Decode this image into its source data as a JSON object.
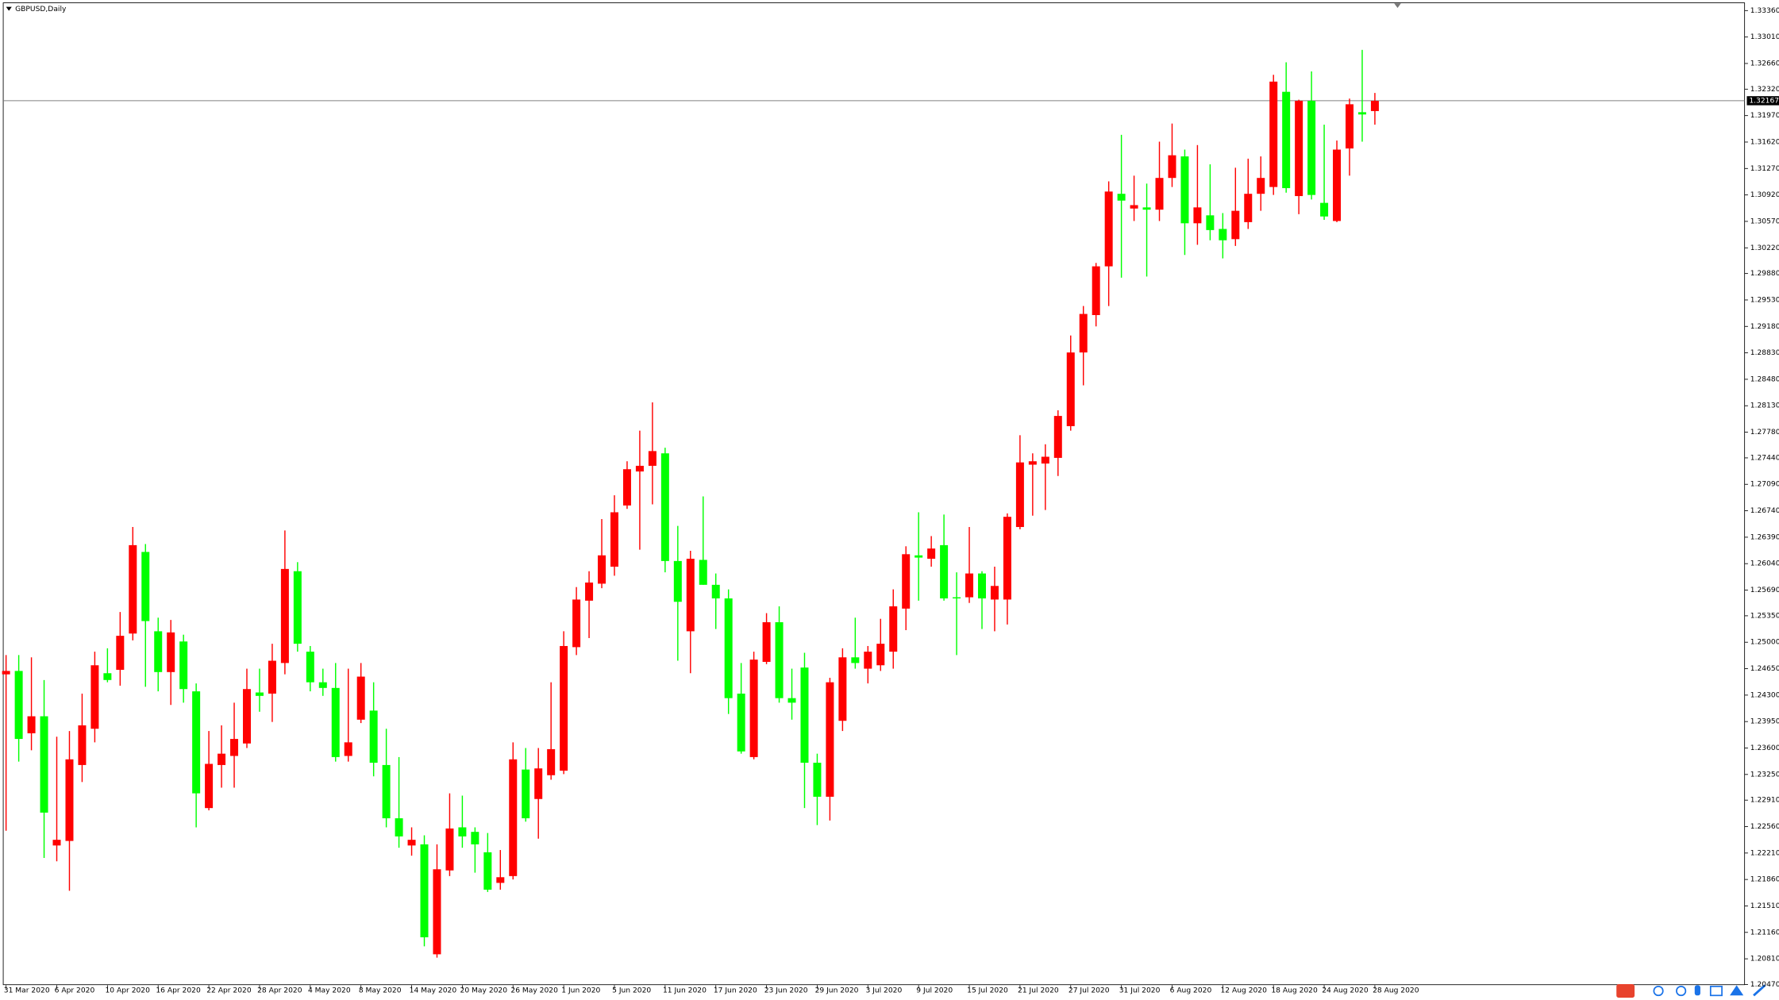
{
  "chart_data": {
    "type": "candlestick",
    "title": "GBPUSD,Daily",
    "up_color": "#ff0000",
    "down_color": "#00ff00",
    "current_price": 1.32167,
    "categories": [
      "31 Mar 2020",
      null,
      null,
      null,
      "6 Apr 2020",
      null,
      null,
      null,
      "10 Apr 2020",
      null,
      null,
      null,
      "16 Apr 2020",
      null,
      null,
      null,
      "22 Apr 2020",
      null,
      null,
      null,
      "28 Apr 2020",
      null,
      null,
      null,
      "4 May 2020",
      null,
      null,
      null,
      "8 May 2020",
      null,
      null,
      null,
      "14 May 2020",
      null,
      null,
      null,
      "20 May 2020",
      null,
      null,
      null,
      "26 May 2020",
      null,
      null,
      null,
      "1 Jun 2020",
      null,
      null,
      null,
      "5 Jun 2020",
      null,
      null,
      null,
      "11 Jun 2020",
      null,
      null,
      null,
      "17 Jun 2020",
      null,
      null,
      null,
      "23 Jun 2020",
      null,
      null,
      null,
      "29 Jun 2020",
      null,
      null,
      null,
      "3 Jul 2020",
      null,
      null,
      null,
      "9 Jul 2020",
      null,
      null,
      null,
      "15 Jul 2020",
      null,
      null,
      null,
      "21 Jul 2020",
      null,
      null,
      null,
      "27 Jul 2020",
      null,
      null,
      null,
      "31 Jul 2020",
      null,
      null,
      null,
      "6 Aug 2020",
      null,
      null,
      null,
      "12 Aug 2020",
      null,
      null,
      null,
      "18 Aug 2020",
      null,
      null,
      null,
      "24 Aug 2020",
      null,
      null,
      null,
      "28 Aug 2020"
    ],
    "open": [
      1.24575,
      1.2462,
      1.23795,
      1.2402,
      1.2231,
      1.2237,
      1.23375,
      1.23855,
      1.2459,
      1.24635,
      1.25115,
      1.26195,
      1.25145,
      1.24605,
      1.2501,
      1.2435,
      1.22805,
      1.23375,
      1.23495,
      1.2366,
      1.24335,
      1.2432,
      1.24725,
      1.2594,
      1.24875,
      1.2447,
      1.24395,
      1.23495,
      1.23975,
      1.24095,
      1.23375,
      1.2267,
      1.2231,
      1.22325,
      1.2087,
      1.2198,
      1.2255,
      1.2249,
      1.2222,
      1.21815,
      1.21905,
      1.23315,
      1.22925,
      1.2324,
      1.233,
      1.24935,
      1.2555,
      1.25775,
      1.26,
      1.2681,
      1.2726,
      1.27335,
      1.275,
      1.26075,
      1.25145,
      1.2609,
      1.2576,
      1.2558,
      1.2432,
      1.2348,
      1.2474,
      1.25265,
      1.2426,
      1.24665,
      1.23405,
      1.22955,
      1.2396,
      1.248,
      1.2465,
      1.24695,
      1.24875,
      1.25445,
      1.2615,
      1.26105,
      1.26285,
      1.25595,
      1.25595,
      1.2591,
      1.25565,
      1.25565,
      1.26525,
      1.2735,
      1.27365,
      1.2744,
      1.2786,
      1.28835,
      1.2933,
      1.29975,
      1.30935,
      1.3074,
      1.30755,
      1.30725,
      1.31145,
      1.3143,
      1.30545,
      1.3065,
      1.3047,
      1.30335,
      1.3056,
      1.30935,
      1.31025,
      1.32285,
      1.30905,
      1.32165,
      1.30815,
      1.30575,
      1.31535,
      1.32015,
      1.3203
    ],
    "high": [
      1.2483,
      1.2483,
      1.248,
      1.245,
      1.2375,
      1.23825,
      1.2432,
      1.24875,
      1.2492,
      1.254,
      1.26525,
      1.263,
      1.25325,
      1.25295,
      1.251,
      1.24455,
      1.23825,
      1.239,
      1.242,
      1.2465,
      1.2465,
      1.2498,
      1.2648,
      1.2606,
      1.2495,
      1.2465,
      1.24725,
      1.2465,
      1.24725,
      1.2447,
      1.23855,
      1.2348,
      1.2255,
      1.22445,
      1.22325,
      1.23,
      1.2297,
      1.2255,
      1.22475,
      1.2225,
      1.23675,
      1.236,
      1.236,
      1.2447,
      1.25145,
      1.2573,
      1.2594,
      1.2663,
      1.26945,
      1.27395,
      1.278,
      1.28175,
      1.27575,
      1.2654,
      1.2621,
      1.2693,
      1.2591,
      1.257,
      1.24725,
      1.24875,
      1.25385,
      1.25475,
      1.2465,
      1.2486,
      1.23525,
      1.2453,
      1.2492,
      1.25325,
      1.2495,
      1.2531,
      1.257,
      1.2627,
      1.2672,
      1.26405,
      1.2669,
      1.25925,
      1.26525,
      1.2594,
      1.26,
      1.26705,
      1.2774,
      1.275,
      1.2762,
      1.2807,
      1.2906,
      1.2945,
      1.3002,
      1.311,
      1.31715,
      1.31175,
      1.3107,
      1.31625,
      1.31865,
      1.3152,
      1.3158,
      1.31325,
      1.3068,
      1.3128,
      1.314,
      1.3143,
      1.3251,
      1.32675,
      1.3218,
      1.32555,
      1.3185,
      1.3164,
      1.32195,
      1.3284,
      1.3227
    ],
    "low": [
      1.22505,
      1.2342,
      1.2357,
      1.22145,
      1.221,
      1.2171,
      1.2315,
      1.23675,
      1.2447,
      1.24425,
      1.25025,
      1.2441,
      1.2435,
      1.2417,
      1.242,
      1.2255,
      1.22775,
      1.23075,
      1.23075,
      1.236,
      1.2408,
      1.23945,
      1.24575,
      1.24875,
      1.2435,
      1.2429,
      1.2342,
      1.2342,
      1.2393,
      1.23225,
      1.2255,
      1.2228,
      1.22175,
      1.20975,
      1.20825,
      1.21905,
      1.2228,
      1.2195,
      1.21695,
      1.21725,
      1.2186,
      1.22625,
      1.224,
      1.2318,
      1.23255,
      1.2483,
      1.25055,
      1.25715,
      1.2588,
      1.26765,
      1.26225,
      1.26825,
      1.25925,
      1.24755,
      1.2459,
      1.2576,
      1.25175,
      1.2405,
      1.23525,
      1.2345,
      1.2471,
      1.242,
      1.23975,
      1.22805,
      1.2258,
      1.2264,
      1.23825,
      1.2465,
      1.24455,
      1.2462,
      1.2465,
      1.2516,
      1.2555,
      1.26,
      1.2555,
      1.2483,
      1.2552,
      1.25175,
      1.25145,
      1.25235,
      1.26495,
      1.26675,
      1.2675,
      1.272,
      1.278,
      1.284,
      1.2918,
      1.2945,
      1.29825,
      1.30575,
      1.2984,
      1.30575,
      1.31025,
      1.30125,
      1.3026,
      1.3032,
      1.3008,
      1.30245,
      1.3047,
      1.3071,
      1.3092,
      1.3095,
      1.30665,
      1.3086,
      1.3059,
      1.3056,
      1.31175,
      1.31625,
      1.3185
    ],
    "close": [
      1.2462,
      1.2372,
      1.2402,
      1.22745,
      1.22385,
      1.2345,
      1.239,
      1.24695,
      1.245,
      1.25085,
      1.26285,
      1.2528,
      1.24605,
      1.2513,
      1.2438,
      1.23,
      1.2339,
      1.23525,
      1.2372,
      1.2438,
      1.2429,
      1.24755,
      1.2597,
      1.2498,
      1.2447,
      1.24395,
      1.2348,
      1.23675,
      1.24545,
      1.23405,
      1.2267,
      1.2243,
      1.22385,
      1.21095,
      1.21995,
      1.22535,
      1.2243,
      1.22325,
      1.21725,
      1.2189,
      1.2345,
      1.2267,
      1.2333,
      1.23585,
      1.2495,
      1.25565,
      1.2579,
      1.2615,
      1.2672,
      1.2729,
      1.27335,
      1.2753,
      1.26075,
      1.25535,
      1.26105,
      1.2576,
      1.2558,
      1.2426,
      1.23555,
      1.2477,
      1.25265,
      1.2426,
      1.242,
      1.23405,
      1.22955,
      1.2447,
      1.248,
      1.24725,
      1.24875,
      1.2498,
      1.25475,
      1.26165,
      1.2612,
      1.2624,
      1.2558,
      1.2558,
      1.2591,
      1.2558,
      1.25745,
      1.2666,
      1.2738,
      1.27395,
      1.27455,
      1.27995,
      1.28835,
      1.29345,
      1.29975,
      1.30965,
      1.30845,
      1.30785,
      1.30725,
      1.31145,
      1.31445,
      1.30545,
      1.30755,
      1.30455,
      1.3032,
      1.3071,
      1.30935,
      1.31145,
      1.3242,
      1.3101,
      1.32165,
      1.3092,
      1.30635,
      1.3152,
      1.3212,
      1.31985,
      1.32165
    ],
    "ylim": [
      1.2046,
      1.3347
    ],
    "yticks": [
      {
        "value": 1.3336,
        "label": "1.33360"
      },
      {
        "value": 1.3301,
        "label": "1.33010"
      },
      {
        "value": 1.3266,
        "label": "1.32660"
      },
      {
        "value": 1.3232,
        "label": "1.32320"
      },
      {
        "value": 1.3197,
        "label": "1.31970"
      },
      {
        "value": 1.3162,
        "label": "1.31620"
      },
      {
        "value": 1.3127,
        "label": "1.31270"
      },
      {
        "value": 1.3092,
        "label": "1.30920"
      },
      {
        "value": 1.3057,
        "label": "1.30570"
      },
      {
        "value": 1.3022,
        "label": "1.30220"
      },
      {
        "value": 1.2988,
        "label": "1.29880"
      },
      {
        "value": 1.2953,
        "label": "1.29530"
      },
      {
        "value": 1.2918,
        "label": "1.29180"
      },
      {
        "value": 1.2883,
        "label": "1.28830"
      },
      {
        "value": 1.2848,
        "label": "1.28480"
      },
      {
        "value": 1.2813,
        "label": "1.28130"
      },
      {
        "value": 1.2778,
        "label": "1.27780"
      },
      {
        "value": 1.2744,
        "label": "1.27440"
      },
      {
        "value": 1.2709,
        "label": "1.27090"
      },
      {
        "value": 1.2674,
        "label": "1.26740"
      },
      {
        "value": 1.2639,
        "label": "1.26390"
      },
      {
        "value": 1.2604,
        "label": "1.26040"
      },
      {
        "value": 1.2569,
        "label": "1.25690"
      },
      {
        "value": 1.2535,
        "label": "1.25350"
      },
      {
        "value": 1.25,
        "label": "1.25000"
      },
      {
        "value": 1.2465,
        "label": "1.24650"
      },
      {
        "value": 1.243,
        "label": "1.24300"
      },
      {
        "value": 1.2395,
        "label": "1.23950"
      },
      {
        "value": 1.236,
        "label": "1.23600"
      },
      {
        "value": 1.2325,
        "label": "1.23250"
      },
      {
        "value": 1.2291,
        "label": "1.22910"
      },
      {
        "value": 1.2256,
        "label": "1.22560"
      },
      {
        "value": 1.2221,
        "label": "1.22210"
      },
      {
        "value": 1.2186,
        "label": "1.21860"
      },
      {
        "value": 1.2151,
        "label": "1.21510"
      },
      {
        "value": 1.2116,
        "label": "1.21160"
      },
      {
        "value": 1.2081,
        "label": "1.20810"
      },
      {
        "value": 1.2047,
        "label": "1.20470"
      }
    ]
  }
}
